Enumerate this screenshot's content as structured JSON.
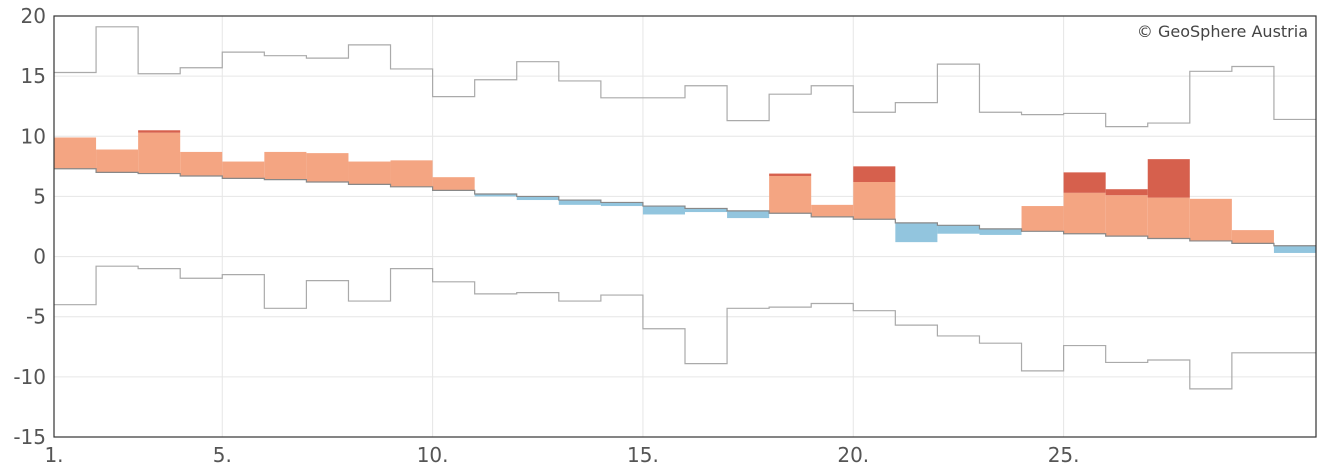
{
  "chart_data": {
    "type": "bar",
    "x_tick_labels": [
      "1.",
      "5.",
      "10.",
      "15.",
      "20.",
      "25."
    ],
    "x_tick_days": [
      1,
      5,
      10,
      15,
      20,
      25
    ],
    "y_tick_labels": [
      "20",
      "15",
      "10",
      "5",
      "0",
      "-5",
      "-10",
      "-15"
    ],
    "y_ticks": [
      20,
      15,
      10,
      5,
      0,
      -5,
      -10,
      -15
    ],
    "ylim": [
      -15,
      20
    ],
    "xlim_days": [
      1,
      31
    ],
    "grid": true,
    "credit": "© GeoSphere Austria",
    "colors": {
      "above_normal": "#f4a582",
      "record_high": "#d6604d",
      "below_normal": "#92c5de",
      "normal_line": "#888888",
      "record_line": "#aaaaaa",
      "grid": "#e6e6e6",
      "axis": "#333333"
    },
    "days": [
      1,
      2,
      3,
      4,
      5,
      6,
      7,
      8,
      9,
      10,
      11,
      12,
      13,
      14,
      15,
      16,
      17,
      18,
      19,
      20,
      21,
      22,
      23,
      24,
      25,
      26,
      27,
      28,
      29,
      30
    ],
    "series": [
      {
        "role": "normal",
        "values": [
          7.3,
          7.0,
          6.9,
          6.7,
          6.5,
          6.4,
          6.2,
          6.0,
          5.8,
          5.5,
          5.2,
          5.0,
          4.7,
          4.5,
          4.2,
          4.0,
          3.8,
          3.6,
          3.3,
          3.1,
          2.8,
          2.6,
          2.3,
          2.1,
          1.9,
          1.7,
          1.5,
          1.3,
          1.1,
          0.9
        ]
      },
      {
        "role": "observed",
        "values": [
          9.9,
          8.9,
          10.3,
          8.7,
          7.9,
          8.7,
          8.6,
          7.9,
          8.0,
          6.6,
          5.0,
          4.7,
          4.3,
          4.2,
          3.5,
          3.7,
          3.2,
          6.7,
          4.3,
          6.2,
          1.2,
          1.9,
          1.8,
          4.2,
          5.3,
          5.1,
          4.9,
          4.8,
          2.2,
          0.3
        ]
      },
      {
        "role": "record_exceedance_top",
        "values": [
          null,
          null,
          10.5,
          null,
          null,
          null,
          null,
          null,
          null,
          null,
          null,
          null,
          null,
          null,
          null,
          null,
          null,
          6.9,
          null,
          7.5,
          null,
          null,
          null,
          null,
          7.0,
          5.6,
          8.1,
          null,
          null,
          null
        ]
      },
      {
        "role": "max_record",
        "values": [
          15.3,
          19.1,
          15.2,
          15.7,
          17.0,
          16.7,
          16.5,
          17.6,
          15.6,
          13.3,
          14.7,
          16.2,
          14.6,
          13.2,
          13.2,
          14.2,
          11.3,
          13.5,
          14.2,
          12.0,
          12.8,
          16.0,
          12.0,
          11.8,
          11.9,
          10.8,
          11.1,
          15.4,
          15.8,
          11.4
        ]
      },
      {
        "role": "min_record",
        "values": [
          -4.0,
          -0.8,
          -1.0,
          -1.8,
          -1.5,
          -4.3,
          -2.0,
          -3.7,
          -1.0,
          -2.1,
          -3.1,
          -3.0,
          -3.7,
          -3.2,
          -6.0,
          -8.9,
          -4.3,
          -4.2,
          -3.9,
          -4.5,
          -5.7,
          -6.6,
          -7.2,
          -9.5,
          -7.4,
          -8.8,
          -8.6,
          -11.0,
          -8.0,
          -8.0
        ]
      }
    ]
  }
}
